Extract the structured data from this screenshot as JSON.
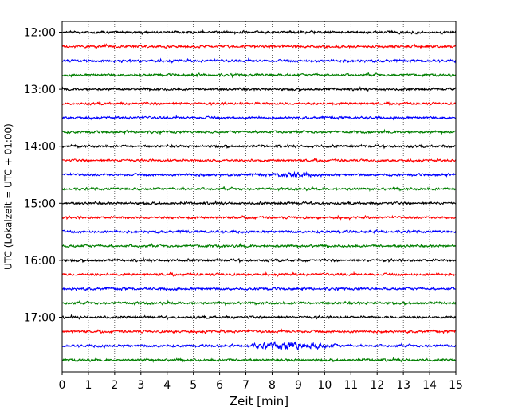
{
  "chart_data": {
    "type": "line",
    "title": "",
    "xlabel": "Zeit  [min]",
    "ylabel": "UTC (Lokalzeit = UTC + 01:00)",
    "xlim": [
      0,
      15
    ],
    "x_ticks": [
      "0",
      "1",
      "2",
      "3",
      "4",
      "5",
      "6",
      "7",
      "8",
      "9",
      "10",
      "11",
      "12",
      "13",
      "14",
      "15"
    ],
    "y_tick_labels": [
      "12:00",
      "13:00",
      "14:00",
      "15:00",
      "16:00",
      "17:00"
    ],
    "trace_start_times": [
      "12:00",
      "12:15",
      "12:30",
      "12:45",
      "13:00",
      "13:15",
      "13:30",
      "13:45",
      "14:00",
      "14:15",
      "14:30",
      "14:45",
      "15:00",
      "15:15",
      "15:30",
      "15:45",
      "16:00",
      "16:15",
      "16:30",
      "16:45",
      "17:00",
      "17:15",
      "17:30",
      "17:45"
    ],
    "trace_interval_min": 15,
    "trace_colors": [
      "#000000",
      "#ff0000",
      "#0000ff",
      "#007f00"
    ],
    "grid": "vertical dotted at each minute",
    "legend": "none",
    "events": [
      {
        "trace": "17:30",
        "from_min": 7,
        "to_min": 10.5,
        "amplitude": "elevated"
      },
      {
        "trace": "14:30",
        "from_min": 8,
        "to_min": 9.5,
        "amplitude": "slightly elevated"
      }
    ]
  }
}
